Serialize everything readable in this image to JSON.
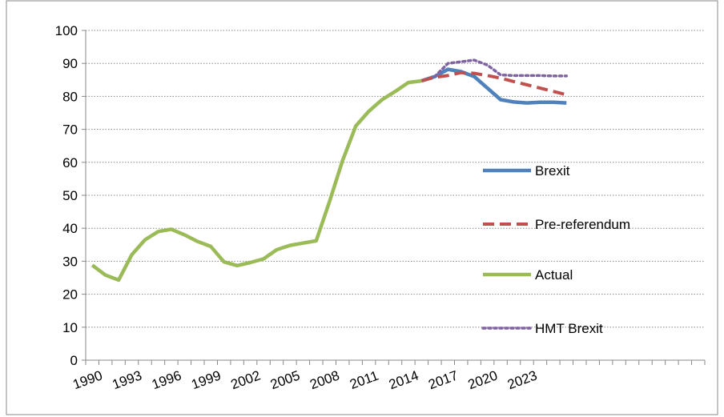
{
  "chart_data": {
    "type": "line",
    "categories": [
      "1990",
      null,
      null,
      "1993",
      null,
      null,
      "1996",
      null,
      null,
      "1999",
      null,
      null,
      "2002",
      null,
      null,
      "2005",
      null,
      null,
      "2008",
      null,
      null,
      "2011",
      null,
      null,
      "2014",
      null,
      null,
      "2017",
      null,
      null,
      "2020",
      null,
      null,
      "2023",
      null,
      null,
      null,
      null,
      null,
      null,
      null,
      null,
      null,
      null,
      null,
      null,
      null
    ],
    "series": [
      {
        "name": "Actual",
        "color": "#9bbb59",
        "style": "solid",
        "values": [
          28.8,
          25.8,
          24.3,
          32,
          36.5,
          39,
          39.7,
          38,
          36,
          34.5,
          29.8,
          28.7,
          29.6,
          30.7,
          33.5,
          34.8,
          35.5,
          36.2,
          48,
          60.5,
          71,
          75.5,
          79,
          81.5,
          84.2,
          84.7,
          null,
          null,
          null,
          null,
          null,
          null,
          null,
          null,
          null,
          null,
          null,
          null,
          null,
          null,
          null,
          null,
          null,
          null,
          null,
          null,
          null
        ]
      },
      {
        "name": "Brexit",
        "color": "#4f81bd",
        "style": "solid",
        "values": [
          null,
          null,
          null,
          null,
          null,
          null,
          null,
          null,
          null,
          null,
          null,
          null,
          null,
          null,
          null,
          null,
          null,
          null,
          null,
          null,
          null,
          null,
          null,
          null,
          null,
          84.7,
          86,
          88.2,
          87.5,
          86,
          82.5,
          79,
          78.3,
          78,
          78.2,
          78.2,
          78,
          null,
          null,
          null,
          null,
          null,
          null,
          null,
          null,
          null,
          null
        ]
      },
      {
        "name": "Pre-referendum",
        "color": "#c0504d",
        "style": "dashed",
        "values": [
          null,
          null,
          null,
          null,
          null,
          null,
          null,
          null,
          null,
          null,
          null,
          null,
          null,
          null,
          null,
          null,
          null,
          null,
          null,
          null,
          null,
          null,
          null,
          null,
          null,
          84.7,
          85.8,
          86.3,
          87.2,
          87,
          86.3,
          85.5,
          84.5,
          83.5,
          82.5,
          81.5,
          80.5,
          null,
          null,
          null,
          null,
          null,
          null,
          null,
          null,
          null,
          null
        ]
      },
      {
        "name": "HMT Brexit",
        "color": "#8064a2",
        "style": "dotted",
        "values": [
          null,
          null,
          null,
          null,
          null,
          null,
          null,
          null,
          null,
          null,
          null,
          null,
          null,
          null,
          null,
          null,
          null,
          null,
          null,
          null,
          null,
          null,
          null,
          null,
          null,
          null,
          86,
          90,
          90.5,
          91,
          89.5,
          86.5,
          86.3,
          86.3,
          86.3,
          86.2,
          86.2,
          null,
          null,
          null,
          null,
          null,
          null,
          null,
          null,
          null,
          null
        ]
      }
    ],
    "legend_order": [
      1,
      2,
      0,
      3
    ],
    "ylim": [
      0,
      100
    ],
    "yticks": [
      0,
      10,
      20,
      30,
      40,
      50,
      60,
      70,
      80,
      90,
      100
    ],
    "grid": true,
    "legend": "right"
  }
}
